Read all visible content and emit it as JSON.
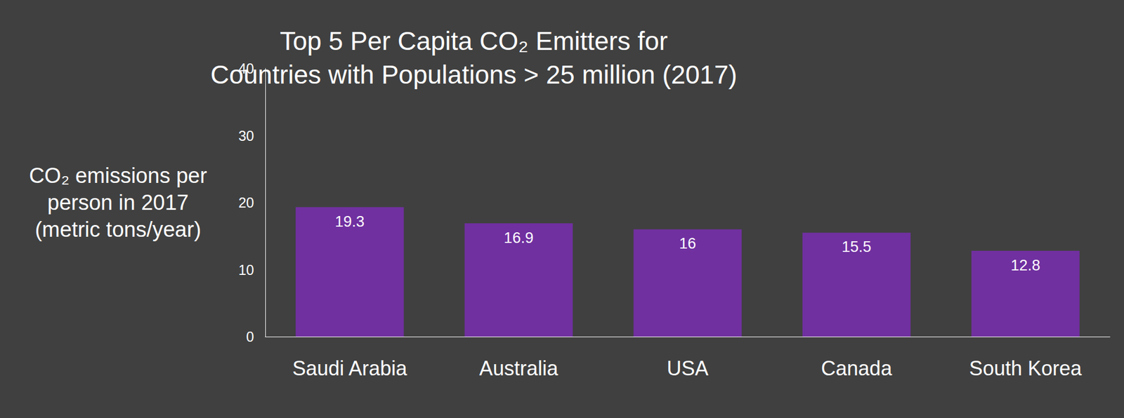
{
  "chart_data": {
    "type": "bar",
    "title": "Top 5 Per Capita CO₂ Emitters for\nCountries with Populations > 25 million (2017)",
    "y_label": "CO₂ emissions per\nperson in 2017\n(metric tons/year)",
    "categories": [
      "Saudi Arabia",
      "Australia",
      "USA",
      "Canada",
      "South Korea"
    ],
    "values": [
      19.3,
      16.9,
      16,
      15.5,
      12.8
    ],
    "color": "#7030a0",
    "ylim": [
      0,
      40
    ],
    "yticks": [
      0,
      10,
      20,
      30,
      40
    ],
    "grid": false,
    "data_labels": true
  }
}
